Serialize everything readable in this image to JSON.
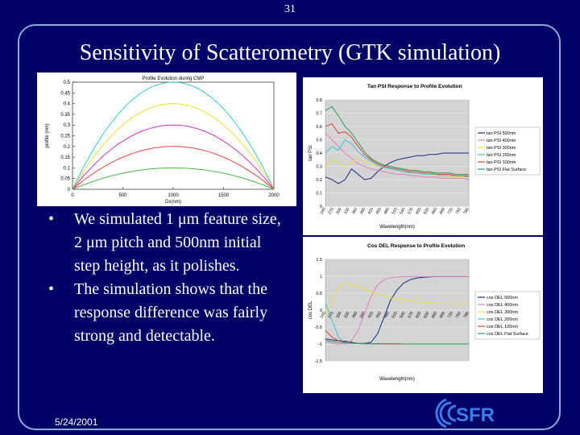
{
  "slide": {
    "page_number": "31",
    "title": "Sensitivity of Scatterometry (GTK simulation)",
    "bullets": [
      "We simulated 1 μm feature size, 2 μm pitch and 500nm initial step height, as it polishes.",
      "The simulation shows that the response difference was fairly strong and detectable."
    ],
    "footer_date": "5/24/2001",
    "logo_text": "SFR",
    "colors": {
      "background": "#000066",
      "frame": "#8aaad8",
      "text": "#ffffff"
    }
  },
  "chart_data": [
    {
      "type": "line",
      "title": "Profile Evolution during CMP",
      "xlabel": "Dx(nm)",
      "ylabel": "profile (nm)",
      "xlim": [
        0,
        2000
      ],
      "ylim": [
        0,
        0.5
      ],
      "x_ticks": [
        "0",
        "500",
        "1000",
        "1500",
        "2000"
      ],
      "y_ticks": [
        "0",
        "0.05",
        "0.1",
        "0.15",
        "0.2",
        "0.25",
        "0.3",
        "0.35",
        "0.4",
        "0.45",
        "0.5"
      ],
      "grid": false,
      "series": [
        {
          "peak": 0.5,
          "color": "#33cccc"
        },
        {
          "peak": 0.4,
          "color": "#e8e030"
        },
        {
          "peak": 0.3,
          "color": "#cc33cc"
        },
        {
          "peak": 0.2,
          "color": "#ee4444"
        },
        {
          "peak": 0.1,
          "color": "#44bb44"
        }
      ]
    },
    {
      "type": "line",
      "title": "Tan PSI Response to Profile Evolution",
      "xlabel": "Wavelength(nm)",
      "ylabel": "tan PSI",
      "ylim": [
        0,
        0.8
      ],
      "y_ticks": [
        "0",
        "0.1",
        "0.2",
        "0.3",
        "0.4",
        "0.5",
        "0.6",
        "0.7",
        "0.8"
      ],
      "categories": [
        "240",
        "265",
        "290",
        "315",
        "340",
        "365",
        "390",
        "415",
        "440",
        "465",
        "490",
        "515",
        "540",
        "565",
        "590",
        "615",
        "640",
        "665",
        "690",
        "715",
        "740",
        "765",
        "790"
      ],
      "x_tick_labels": [
        "240",
        "270",
        "300",
        "330",
        "360",
        "390",
        "420",
        "450",
        "480",
        "510",
        "540",
        "570",
        "600",
        "630",
        "660",
        "690",
        "720",
        "750",
        "780"
      ],
      "grid": true,
      "legend": "right",
      "series": [
        {
          "name": "tan PSI 500nm",
          "color": "#1a2a80",
          "values": [
            0.22,
            0.2,
            0.17,
            0.2,
            0.28,
            0.24,
            0.2,
            0.21,
            0.26,
            0.3,
            0.33,
            0.35,
            0.36,
            0.37,
            0.38,
            0.38,
            0.39,
            0.39,
            0.4,
            0.4,
            0.4,
            0.4,
            0.4
          ]
        },
        {
          "name": "tan PSI 400nm",
          "color": "#e080c0",
          "values": [
            0.55,
            0.5,
            0.45,
            0.4,
            0.36,
            0.32,
            0.3,
            0.28,
            0.27,
            0.26,
            0.25,
            0.24,
            0.24,
            0.23,
            0.23,
            0.22,
            0.22,
            0.22,
            0.21,
            0.21,
            0.21,
            0.21,
            0.2
          ]
        },
        {
          "name": "tan PSI 300nm",
          "color": "#e8e040",
          "values": [
            0.3,
            0.35,
            0.33,
            0.3,
            0.33,
            0.36,
            0.34,
            0.32,
            0.3,
            0.29,
            0.28,
            0.27,
            0.26,
            0.25,
            0.25,
            0.24,
            0.24,
            0.23,
            0.23,
            0.22,
            0.22,
            0.22,
            0.22
          ]
        },
        {
          "name": "tan PSI 200nm",
          "color": "#40c0e0",
          "values": [
            0.4,
            0.45,
            0.42,
            0.5,
            0.47,
            0.41,
            0.37,
            0.34,
            0.31,
            0.29,
            0.28,
            0.27,
            0.26,
            0.25,
            0.25,
            0.24,
            0.24,
            0.24,
            0.23,
            0.23,
            0.23,
            0.23,
            0.22
          ]
        },
        {
          "name": "tan PSI 100nm",
          "color": "#e04040",
          "values": [
            0.6,
            0.62,
            0.55,
            0.56,
            0.52,
            0.45,
            0.39,
            0.35,
            0.32,
            0.3,
            0.29,
            0.28,
            0.27,
            0.26,
            0.26,
            0.25,
            0.25,
            0.24,
            0.24,
            0.24,
            0.23,
            0.23,
            0.23
          ]
        },
        {
          "name": "tan PSI Flat Surface",
          "color": "#30a050",
          "values": [
            0.72,
            0.75,
            0.68,
            0.6,
            0.55,
            0.48,
            0.41,
            0.36,
            0.33,
            0.31,
            0.3,
            0.29,
            0.28,
            0.27,
            0.27,
            0.26,
            0.26,
            0.25,
            0.25,
            0.25,
            0.24,
            0.24,
            0.24
          ]
        }
      ]
    },
    {
      "type": "line",
      "title": "Cos DEL Response to Profile Evolution",
      "xlabel": "Wavelength(nm)",
      "ylabel": "cos DEL",
      "ylim": [
        -1.5,
        1.5
      ],
      "y_ticks": [
        "-1.5",
        "-1",
        "-0.5",
        "0",
        "0.5",
        "1",
        "1.5"
      ],
      "categories": [
        "240",
        "265",
        "290",
        "315",
        "340",
        "365",
        "390",
        "415",
        "440",
        "465",
        "490",
        "515",
        "540",
        "565",
        "590",
        "615",
        "640",
        "665",
        "690",
        "715",
        "740",
        "765",
        "790"
      ],
      "x_tick_labels": [
        "240",
        "270",
        "300",
        "330",
        "360",
        "390",
        "420",
        "450",
        "480",
        "510",
        "540",
        "570",
        "600",
        "630",
        "660",
        "690",
        "720",
        "750",
        "780"
      ],
      "grid": true,
      "legend": "right",
      "series": [
        {
          "name": "cos DEL 500nm",
          "color": "#1a2a80",
          "values": [
            -0.85,
            -0.88,
            -0.9,
            -0.92,
            -0.95,
            -0.98,
            -0.98,
            -0.95,
            -0.7,
            -0.2,
            0.3,
            0.6,
            0.8,
            0.9,
            0.95,
            0.97,
            0.98,
            0.99,
            0.99,
            0.99,
            0.99,
            0.99,
            0.99
          ]
        },
        {
          "name": "cos DEL 400nm",
          "color": "#e080c0",
          "values": [
            -0.95,
            -0.98,
            -1.0,
            -0.98,
            -0.9,
            -0.6,
            -0.1,
            0.4,
            0.75,
            0.9,
            0.96,
            0.98,
            0.99,
            0.99,
            0.99,
            0.99,
            0.99,
            0.99,
            0.99,
            0.99,
            0.99,
            0.99,
            0.99
          ]
        },
        {
          "name": "cos DEL 300nm",
          "color": "#e8e040",
          "values": [
            -0.2,
            0.3,
            0.65,
            0.8,
            0.75,
            0.7,
            0.62,
            0.55,
            0.48,
            0.42,
            0.37,
            0.33,
            0.3,
            0.27,
            0.25,
            0.23,
            0.22,
            0.21,
            0.2,
            0.2,
            0.19,
            0.19,
            0.19
          ]
        },
        {
          "name": "cos DEL 200nm",
          "color": "#40c0e0",
          "values": [
            0.2,
            -0.3,
            -0.8,
            -1.0,
            -0.98,
            -0.99,
            -1.0,
            -1.0,
            -1.0,
            -1.0,
            -1.0,
            -1.0,
            -1.0,
            -1.0,
            -1.0,
            -1.0,
            -1.0,
            -1.0,
            -1.0,
            -1.0,
            -1.0,
            -1.0,
            -1.0
          ]
        },
        {
          "name": "cos DEL 100nm",
          "color": "#e04040",
          "values": [
            -0.6,
            -0.8,
            -0.9,
            -0.95,
            -0.97,
            -0.98,
            -0.99,
            -0.99,
            -0.99,
            -1.0,
            -1.0,
            -1.0,
            -1.0,
            -1.0,
            -1.0,
            -1.0,
            -1.0,
            -1.0,
            -1.0,
            -1.0,
            -1.0,
            -1.0,
            -1.0
          ]
        },
        {
          "name": "cos DEL Flat Surface",
          "color": "#30a050",
          "values": [
            -0.9,
            -0.93,
            -0.95,
            -0.96,
            -0.97,
            -0.98,
            -0.98,
            -0.99,
            -0.99,
            -0.99,
            -0.99,
            -0.99,
            -1.0,
            -1.0,
            -1.0,
            -1.0,
            -1.0,
            -1.0,
            -1.0,
            -1.0,
            -1.0,
            -1.0,
            -1.0
          ]
        }
      ]
    }
  ]
}
